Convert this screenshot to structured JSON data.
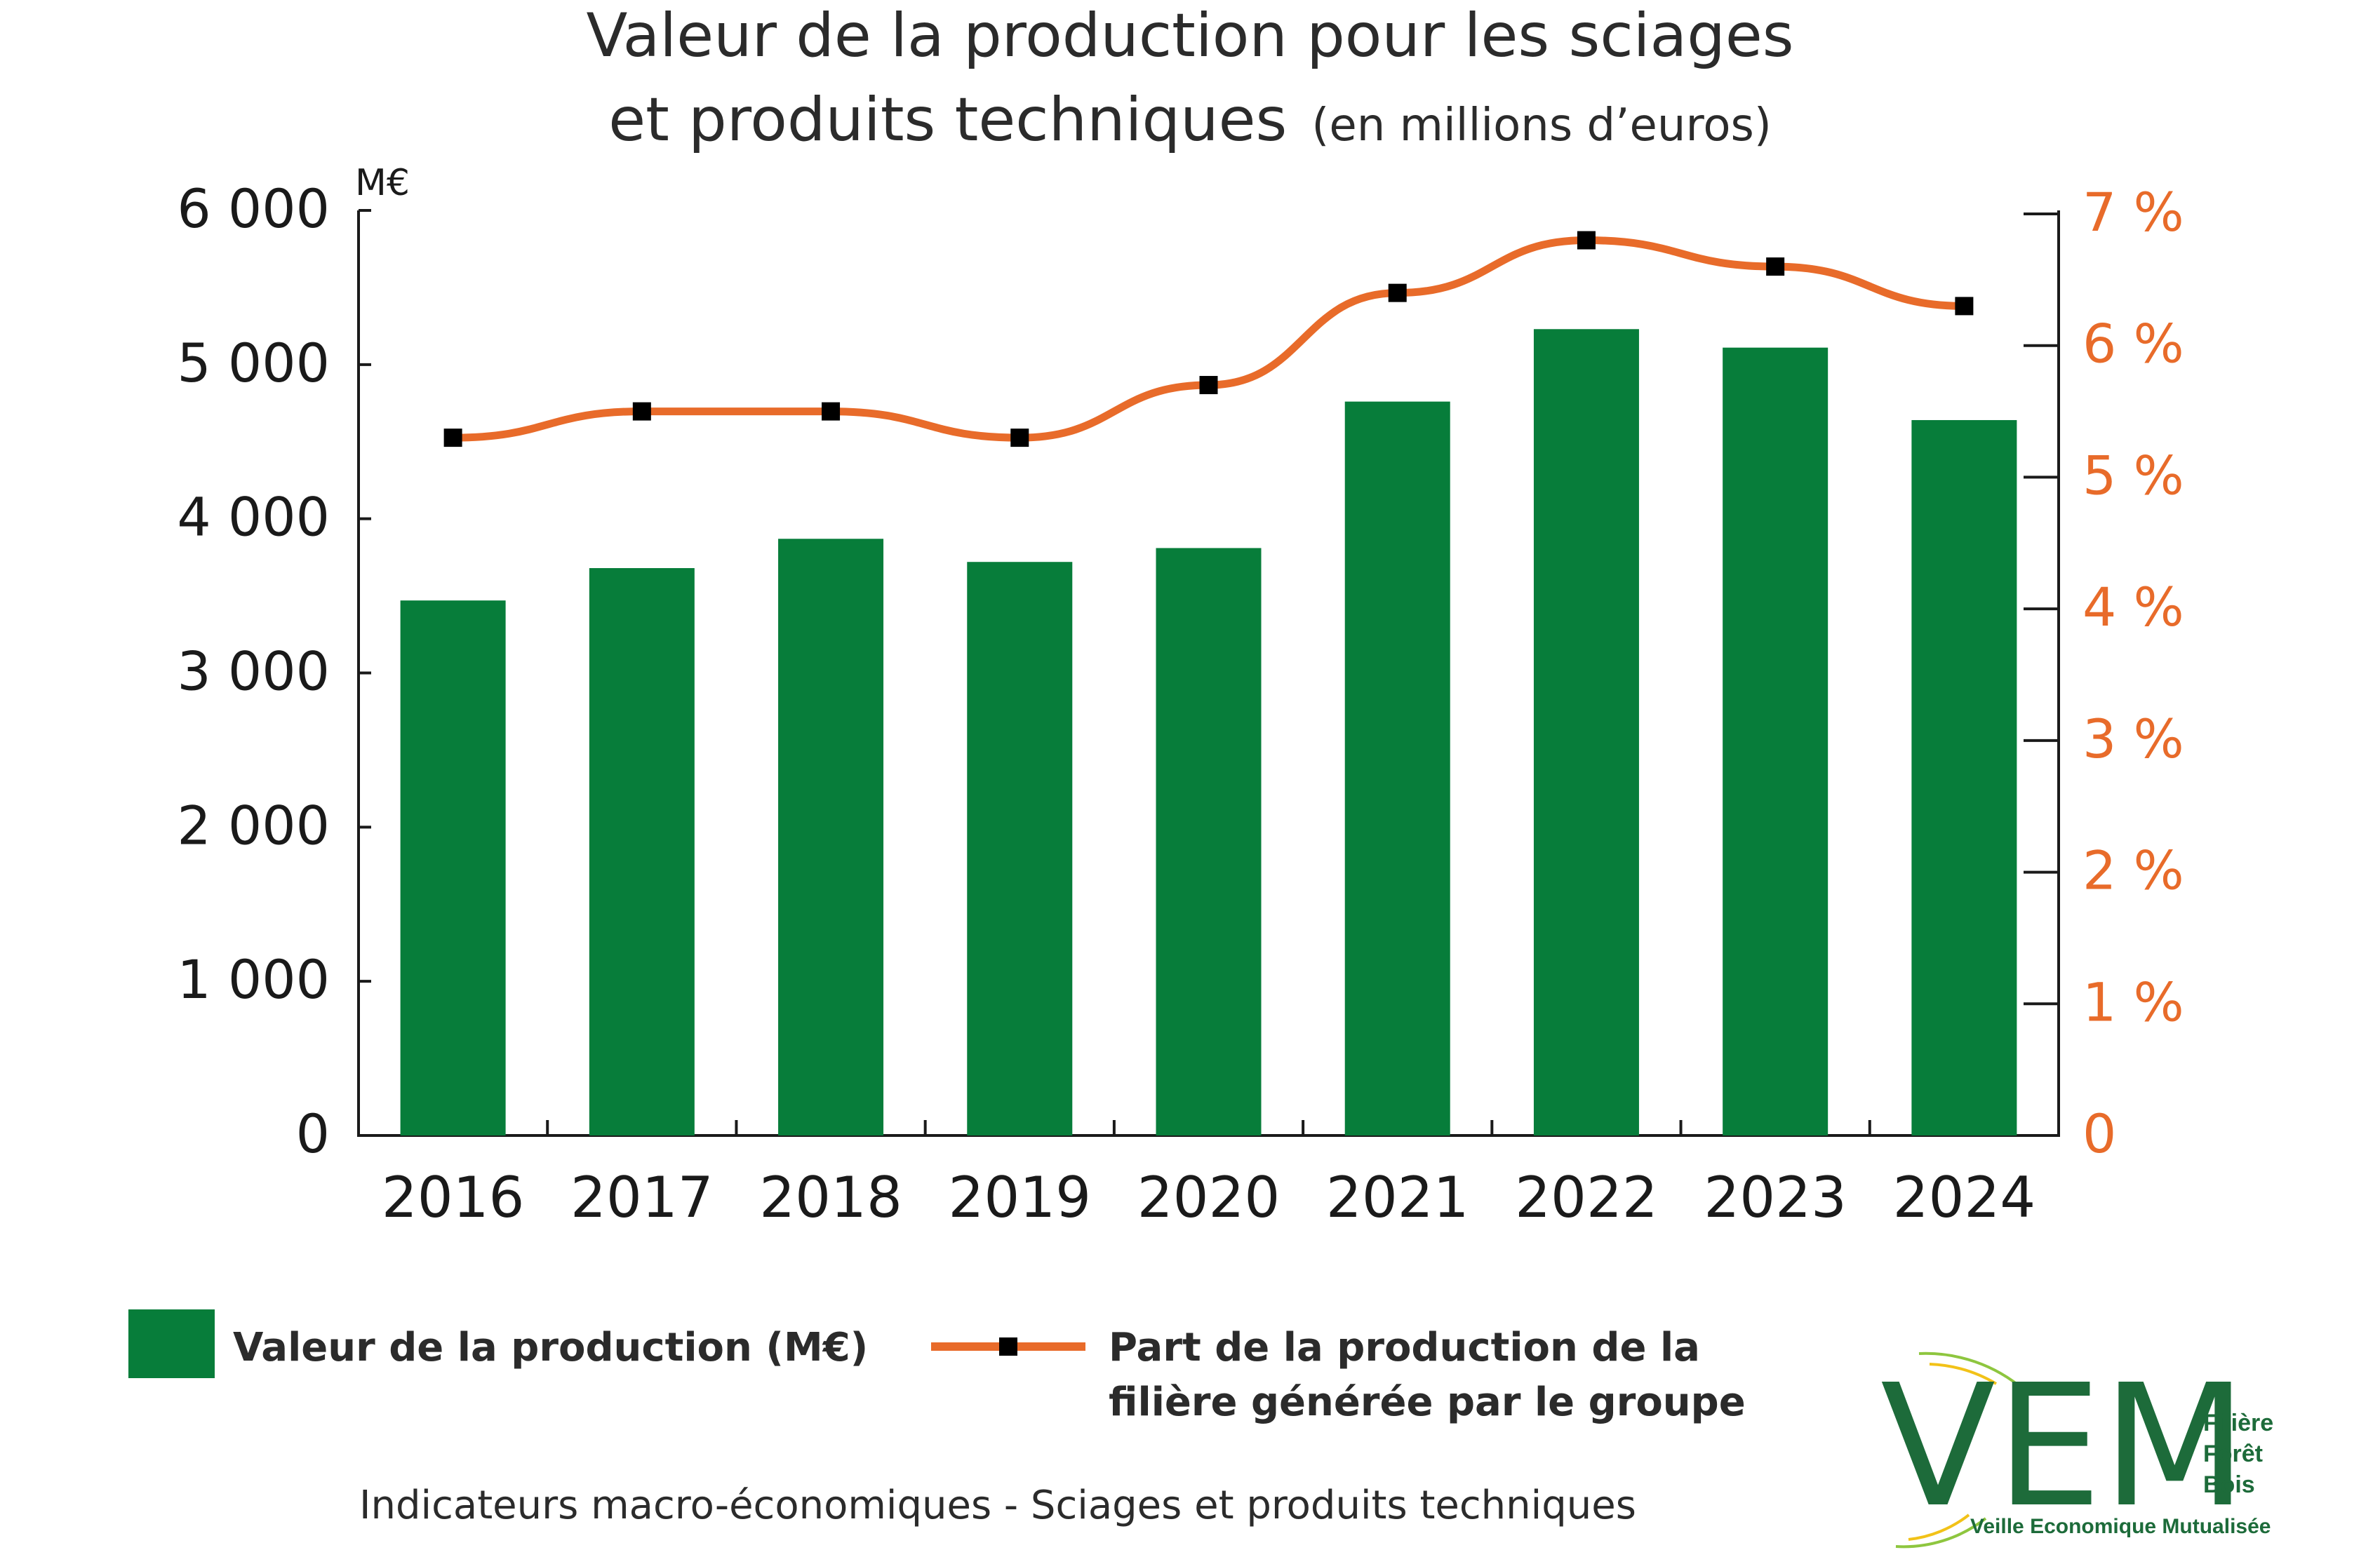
{
  "title": {
    "line1": "Valeur de la production pour les sciages",
    "line2_main": "et produits techniques",
    "line2_small": "(en millions d’euros)"
  },
  "chart_data": {
    "type": "bar",
    "categories": [
      "2016",
      "2017",
      "2018",
      "2019",
      "2020",
      "2021",
      "2022",
      "2023",
      "2024"
    ],
    "series": [
      {
        "name": "Valeur de la production (M€)",
        "axis": "left",
        "type": "bar",
        "color": "#077d3a",
        "values": [
          3470,
          3680,
          3870,
          3720,
          3810,
          4760,
          5230,
          5110,
          4640
        ]
      },
      {
        "name": "Part de la production de la filière générée par le groupe",
        "axis": "right",
        "type": "line",
        "color": "#e86b2a",
        "marker_color": "#000000",
        "values": [
          5.3,
          5.5,
          5.5,
          5.3,
          5.7,
          6.4,
          6.8,
          6.6,
          6.3
        ]
      }
    ],
    "y_left": {
      "unit": "M€",
      "ylim": [
        0,
        6000
      ],
      "ticks": [
        0,
        1000,
        2000,
        3000,
        4000,
        5000,
        6000
      ],
      "tick_labels": [
        "0",
        "1 000",
        "2 000",
        "3 000",
        "4 000",
        "5 000",
        "6 000"
      ]
    },
    "y_right": {
      "ylim": [
        0,
        7
      ],
      "ticks": [
        0,
        1,
        2,
        3,
        4,
        5,
        6,
        7
      ],
      "tick_labels": [
        "0",
        "1 %",
        "2 %",
        "3 %",
        "4 %",
        "5 %",
        "6 %",
        "7 %"
      ],
      "color": "#e86b2a"
    },
    "grid": false,
    "legend_placement": "bottom-left"
  },
  "legend": {
    "bar_label": "Valeur de la production (M€)",
    "line_label_1": "Part de la production de la",
    "line_label_2": "filière générée par le groupe"
  },
  "footer": {
    "text": "Indicateurs macro-économiques - Sciages et produits techniques"
  },
  "logo": {
    "letters": "VEM",
    "line1": "Filière",
    "line2": "Forêt",
    "line3": "Bois",
    "tagline": "Veille Economique Mutualisée"
  }
}
